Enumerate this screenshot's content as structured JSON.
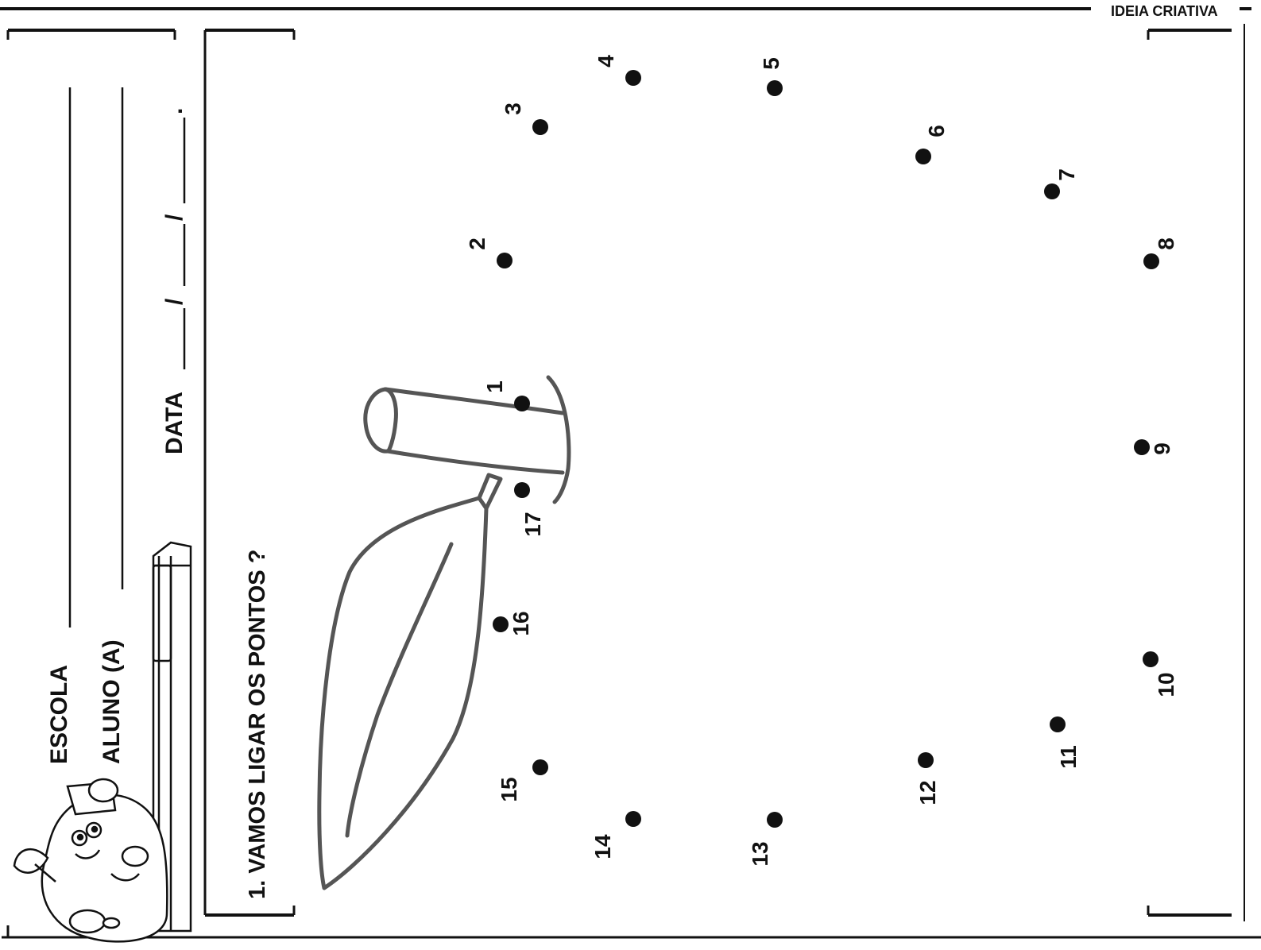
{
  "brand": "IDEIA CRIATIVA",
  "header": {
    "school_label": "ESCOLA",
    "student_label": "ALUNO (A)",
    "date_label": "DATA",
    "date_separator": "/",
    "date_end": "."
  },
  "exercise": {
    "instruction": "1. VAMOS LIGAR OS PONTOS ?"
  },
  "dots": [
    {
      "label": "1"
    },
    {
      "label": "2"
    },
    {
      "label": "3"
    },
    {
      "label": "4"
    },
    {
      "label": "5"
    },
    {
      "label": "6"
    },
    {
      "label": "7"
    },
    {
      "label": "8"
    },
    {
      "label": "9"
    },
    {
      "label": "10"
    },
    {
      "label": "11"
    },
    {
      "label": "12"
    },
    {
      "label": "13"
    },
    {
      "label": "14"
    },
    {
      "label": "15"
    },
    {
      "label": "16"
    },
    {
      "label": "17"
    }
  ],
  "colors": {
    "ink": "#111111",
    "drawing": "#555555",
    "paper": "#ffffff"
  }
}
